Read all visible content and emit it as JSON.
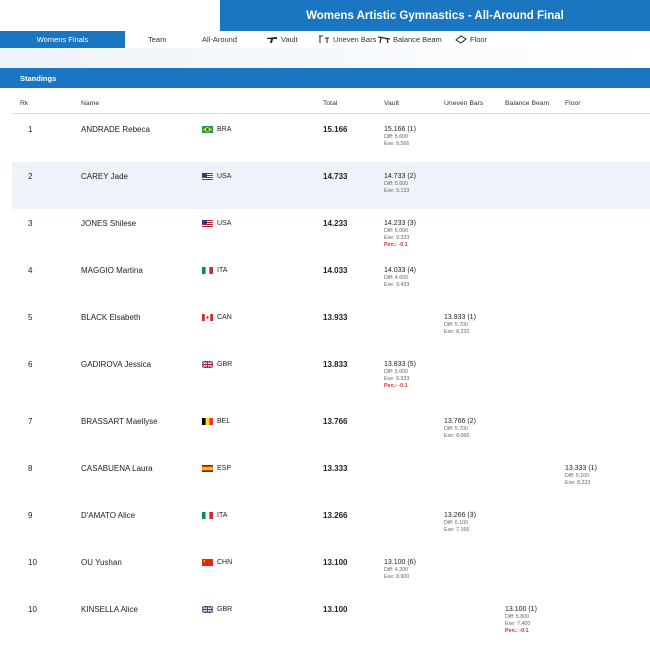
{
  "header": {
    "title": "Womens Artistic Gymnastics - All-Around Final"
  },
  "tabs": [
    {
      "label": "Womens Finals",
      "icon": ""
    },
    {
      "label": "Team",
      "icon": ""
    },
    {
      "label": "All-Around",
      "icon": ""
    },
    {
      "label": "Vault",
      "icon": "vault-icon"
    },
    {
      "label": "Uneven Bars",
      "icon": "uneven-bars-icon"
    },
    {
      "label": "Balance Beam",
      "icon": "balance-beam-icon"
    },
    {
      "label": "Floor",
      "icon": "floor-icon"
    }
  ],
  "section": {
    "title": "Standings"
  },
  "columns": {
    "rank": "Rk",
    "name": "Name",
    "total": "Total",
    "vault": "Vault",
    "bars": "Uneven Bars",
    "beam": "Balance Beam",
    "floor": "Floor"
  },
  "rows": [
    {
      "rank": "1",
      "name": "ANDRADE Rebeca",
      "noc": "BRA",
      "flag": "bra",
      "total": "15.166",
      "vault": {
        "score": "15.166 (1)",
        "diff": "Diff: 5.600",
        "exe": "Exe: 9.566",
        "pen": ""
      }
    },
    {
      "rank": "2",
      "name": "CAREY Jade",
      "noc": "USA",
      "flag": "usa",
      "total": "14.733",
      "vault": {
        "score": "14.733 (2)",
        "diff": "Diff: 5.600",
        "exe": "Exe: 9.133",
        "pen": ""
      }
    },
    {
      "rank": "3",
      "name": "JONES Shilese",
      "noc": "USA",
      "flag": "usa",
      "total": "14.233",
      "vault": {
        "score": "14.233 (3)",
        "diff": "Diff: 5.000",
        "exe": "Exe: 9.333",
        "pen": "Pen.: -0.1"
      }
    },
    {
      "rank": "4",
      "name": "MAGGIO Martina",
      "noc": "ITA",
      "flag": "ita",
      "total": "14.033",
      "vault": {
        "score": "14.033 (4)",
        "diff": "Diff: 4.600",
        "exe": "Exe: 9.433",
        "pen": ""
      }
    },
    {
      "rank": "5",
      "name": "BLACK Elsabeth",
      "noc": "CAN",
      "flag": "can",
      "total": "13.933",
      "bars": {
        "score": "13.933 (1)",
        "diff": "Diff: 5.700",
        "exe": "Exe: 8.233",
        "pen": ""
      }
    },
    {
      "rank": "6",
      "name": "GADIROVA Jessica",
      "noc": "GBR",
      "flag": "gbr",
      "total": "13.833",
      "vault": {
        "score": "13.833 (5)",
        "diff": "Diff: 5.000",
        "exe": "Exe: 8.933",
        "pen": "Pen.: -0.1"
      }
    },
    {
      "rank": "7",
      "name": "BRASSART Maellyse",
      "noc": "BEL",
      "flag": "bel",
      "total": "13.766",
      "bars": {
        "score": "13.766 (2)",
        "diff": "Diff: 5.700",
        "exe": "Exe: 8.066",
        "pen": ""
      }
    },
    {
      "rank": "8",
      "name": "CASABUENA Laura",
      "noc": "ESP",
      "flag": "esp",
      "total": "13.333",
      "floor": {
        "score": "13.333 (1)",
        "diff": "Diff: 5.100",
        "exe": "Exe: 8.233",
        "pen": ""
      }
    },
    {
      "rank": "9",
      "name": "D'AMATO Alice",
      "noc": "ITA",
      "flag": "ita",
      "total": "13.266",
      "bars": {
        "score": "13.266 (3)",
        "diff": "Diff: 6.100",
        "exe": "Exe: 7.166",
        "pen": ""
      }
    },
    {
      "rank": "10",
      "name": "OU Yushan",
      "noc": "CHN",
      "flag": "chn",
      "total": "13.100",
      "vault": {
        "score": "13.100 (6)",
        "diff": "Diff: 4.200",
        "exe": "Exe: 8.900",
        "pen": ""
      }
    },
    {
      "rank": "10",
      "name": "KINSELLA Alice",
      "noc": "GBR",
      "flag": "gbr",
      "total": "13.100",
      "beam": {
        "score": "13.100 (1)",
        "diff": "Diff: 5.800",
        "exe": "Exe: 7.400",
        "pen": "Pen.: -0.1"
      }
    }
  ],
  "colors": {
    "primary": "#1a76c0",
    "row_shade": "#eef3f9",
    "penalty": "#d32f2f"
  }
}
